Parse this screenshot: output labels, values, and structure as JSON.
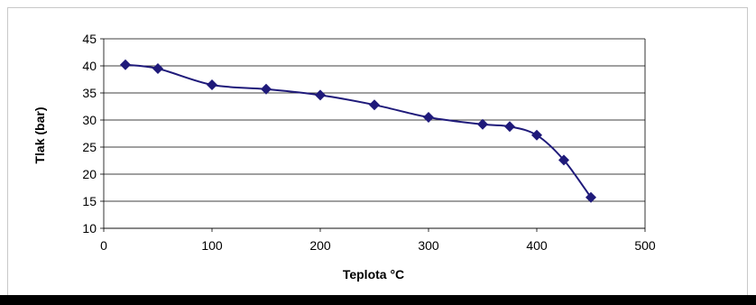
{
  "colors": {
    "series": "#1f1a7a",
    "grid": "#000000",
    "frame": "#c8c8c8"
  },
  "chart_data": {
    "type": "line",
    "title": "",
    "xlabel": "Teplota °C",
    "ylabel": "Tlak  (bar)",
    "xlim": [
      0,
      500
    ],
    "ylim": [
      10,
      45
    ],
    "xticks": [
      0,
      100,
      200,
      300,
      400,
      500
    ],
    "yticks": [
      10,
      15,
      20,
      25,
      30,
      35,
      40,
      45
    ],
    "grid": "horizontal",
    "legend": "none",
    "marker": "diamond",
    "smooth": true,
    "series": [
      {
        "x": [
          20,
          50,
          100,
          150,
          200,
          250,
          300,
          350,
          375,
          400,
          425,
          450
        ],
        "y": [
          40.2,
          39.5,
          36.5,
          35.7,
          34.6,
          32.8,
          30.5,
          29.2,
          28.8,
          27.2,
          22.6,
          15.7
        ]
      }
    ]
  }
}
